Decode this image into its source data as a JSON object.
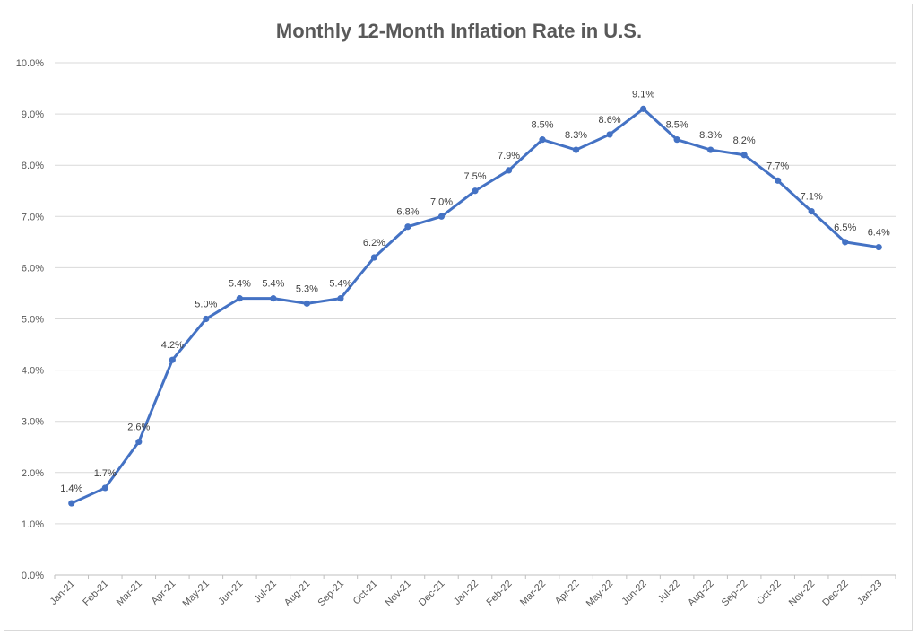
{
  "chart_data": {
    "type": "line",
    "title": "Monthly 12-Month Inflation Rate in U.S.",
    "xlabel": "",
    "ylabel": "",
    "ylim": [
      0,
      10
    ],
    "yticks": [
      "0.0%",
      "1.0%",
      "2.0%",
      "3.0%",
      "4.0%",
      "5.0%",
      "6.0%",
      "7.0%",
      "8.0%",
      "9.0%",
      "10.0%"
    ],
    "grid": true,
    "line_color": "#4472C4",
    "categories": [
      "Jan-21",
      "Feb-21",
      "Mar-21",
      "Apr-21",
      "May-21",
      "Jun-21",
      "Jul-21",
      "Aug-21",
      "Sep-21",
      "Oct-21",
      "Nov-21",
      "Dec-21",
      "Jan-22",
      "Feb-22",
      "Mar-22",
      "Apr-22",
      "May-22",
      "Jun-22",
      "Jul-22",
      "Aug-22",
      "Sep-22",
      "Oct-22",
      "Nov-22",
      "Dec-22",
      "Jan-23"
    ],
    "series": [
      {
        "values": [
          1.4,
          1.7,
          2.6,
          4.2,
          5.0,
          5.4,
          5.4,
          5.3,
          5.4,
          6.2,
          6.8,
          7.0,
          7.5,
          7.9,
          8.5,
          8.3,
          8.6,
          9.1,
          8.5,
          8.3,
          8.2,
          7.7,
          7.1,
          6.5,
          6.4
        ],
        "labels": [
          "1.4%",
          "1.7%",
          "2.6%",
          "4.2%",
          "5.0%",
          "5.4%",
          "5.4%",
          "5.3%",
          "5.4%",
          "6.2%",
          "6.8%",
          "7.0%",
          "7.5%",
          "7.9%",
          "8.5%",
          "8.3%",
          "8.6%",
          "9.1%",
          "8.5%",
          "8.3%",
          "8.2%",
          "7.7%",
          "7.1%",
          "6.5%",
          "6.4%"
        ]
      }
    ]
  }
}
